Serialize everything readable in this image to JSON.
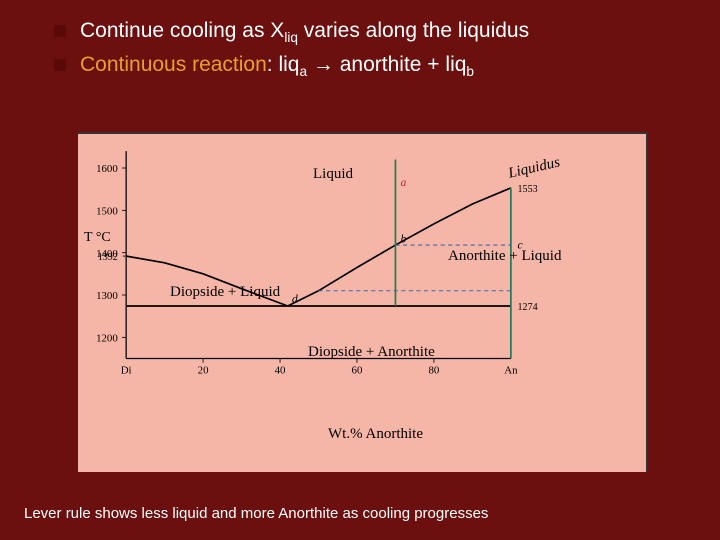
{
  "bullets": {
    "b1_pre": "Continue cooling as X",
    "b1_sub": "liq",
    "b1_post": " varies along the liquidus",
    "b2_pre": "Continuous reaction",
    "b2_mid1": ": liq",
    "b2_sub1": "a",
    "b2_arrow": " → ",
    "b2_mid2": "anorthite + liq",
    "b2_sub2": "b"
  },
  "footer": "Lever rule shows less liquid and more Anorthite as cooling progresses",
  "diagram": {
    "type": "phase-diagram",
    "background_color": "#f5b6a8",
    "axis_color": "#000000",
    "xlim": [
      0,
      100
    ],
    "ylim": [
      1150,
      1640
    ],
    "xlabel": "Wt.% Anorthite",
    "ylabel_pre": "T ",
    "ylabel_deg": "°C",
    "y_ticks": [
      1200,
      1300,
      1400,
      1500,
      1600
    ],
    "y_extra": [
      1392,
      1553,
      1274
    ],
    "x_ticks": [
      20,
      40,
      60,
      80
    ],
    "x_end_labels": {
      "left": "Di",
      "right": "An"
    },
    "liquidus_right": {
      "x": [
        42,
        50,
        60,
        70,
        80,
        90,
        100
      ],
      "y": [
        1274,
        1310,
        1365,
        1418,
        1468,
        1515,
        1553
      ],
      "color": "#000000",
      "width": 2
    },
    "liquidus_left": {
      "x": [
        0,
        10,
        20,
        30,
        42
      ],
      "y": [
        1392,
        1376,
        1350,
        1315,
        1274
      ],
      "color": "#000000",
      "width": 2
    },
    "eutectic_line": {
      "x": [
        0,
        100
      ],
      "y": [
        1274,
        1274
      ],
      "color": "#000000",
      "width": 2
    },
    "composition_line": {
      "x": 70,
      "y0": 1274,
      "y1": 1620,
      "color": "#1a7a5a",
      "width": 2
    },
    "right_edge_line": {
      "x": 100,
      "y0": 1150,
      "y1": 1553,
      "color": "#1a7a5a",
      "width": 2
    },
    "tie_line_b": {
      "y": 1418,
      "x0": 70,
      "x1": 100,
      "color": "#3a6aa8",
      "dash": "5,4",
      "width": 1.2
    },
    "tie_line_d": {
      "y": 1310,
      "x0": 50,
      "x1": 100,
      "color": "#3a6aa8",
      "dash": "5,4",
      "width": 1.2
    },
    "regions": {
      "liquid": "Liquid",
      "liquidus_lbl": "Liquidus",
      "an_liq": "Anorthite + Liquid",
      "di_liq": "Diopside + Liquid",
      "di_an": "Diopside + Anorthite"
    },
    "points": {
      "a": {
        "x": 70,
        "y": 1553,
        "label": "a",
        "color": "#c02a2a"
      },
      "b": {
        "x": 70,
        "y": 1418,
        "label": "b"
      },
      "c": {
        "x": 100,
        "y": 1418,
        "label": "c"
      },
      "d": {
        "x": 42,
        "y": 1274,
        "label": "d"
      }
    }
  }
}
